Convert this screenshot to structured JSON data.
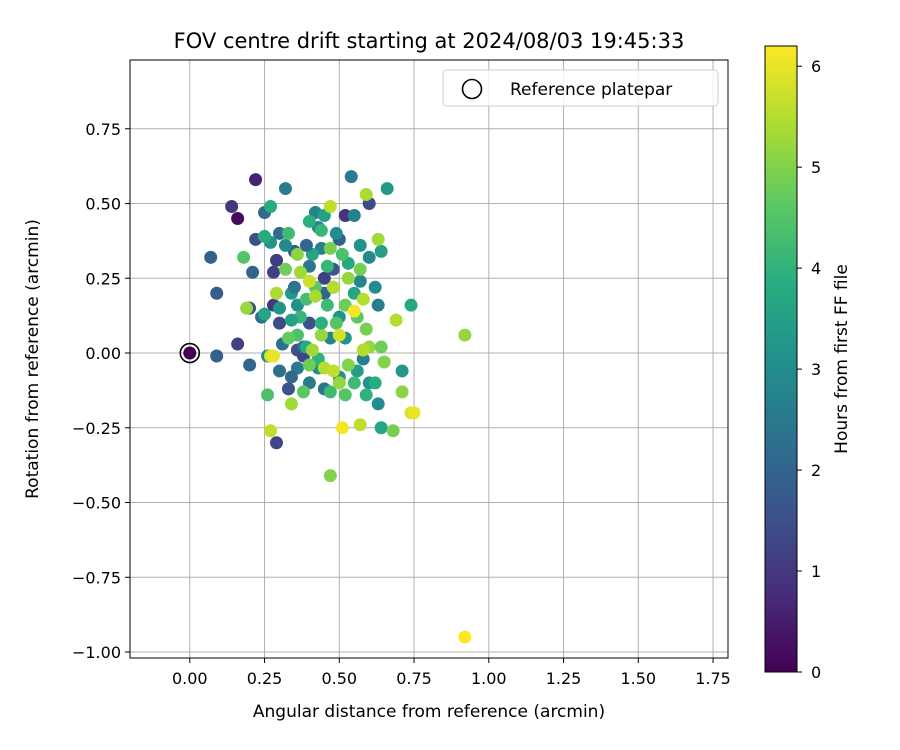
{
  "chart_data": {
    "type": "scatter",
    "title": "FOV centre drift starting at 2024/08/03 19:45:33",
    "xlabel": "Angular distance from reference (arcmin)",
    "ylabel": "Rotation from reference (arcmin)",
    "xlim": [
      -0.2,
      1.8
    ],
    "ylim": [
      -1.02,
      0.98
    ],
    "x_ticks": [
      0.0,
      0.25,
      0.5,
      0.75,
      1.0,
      1.25,
      1.5,
      1.75
    ],
    "x_tick_labels": [
      "0.00",
      "0.25",
      "0.50",
      "0.75",
      "1.00",
      "1.25",
      "1.50",
      "1.75"
    ],
    "y_ticks": [
      -1.0,
      -0.75,
      -0.5,
      -0.25,
      0.0,
      0.25,
      0.5,
      0.75
    ],
    "y_tick_labels": [
      "−1.00",
      "−0.75",
      "−0.50",
      "−0.25",
      "0.00",
      "0.25",
      "0.50",
      "0.75"
    ],
    "grid": true,
    "legend": {
      "placement": "top-right",
      "entries": [
        "Reference platepar"
      ]
    },
    "reference_point": {
      "x": 0.0,
      "y": 0.0
    },
    "colorbar": {
      "label": "Hours from first FF file",
      "range": [
        0,
        6.2
      ],
      "ticks": [
        0,
        1,
        2,
        3,
        4,
        5,
        6
      ],
      "tick_labels": [
        "0",
        "1",
        "2",
        "3",
        "4",
        "5",
        "6"
      ],
      "colormap": "viridis"
    },
    "points": [
      {
        "x": 0.0,
        "y": 0.0,
        "c": 0.0
      },
      {
        "x": 0.16,
        "y": 0.45,
        "c": 0.2
      },
      {
        "x": 0.22,
        "y": 0.58,
        "c": 0.6
      },
      {
        "x": 0.14,
        "y": 0.49,
        "c": 1.0
      },
      {
        "x": 0.16,
        "y": 0.03,
        "c": 1.2
      },
      {
        "x": 0.29,
        "y": -0.3,
        "c": 1.3
      },
      {
        "x": 0.28,
        "y": 0.16,
        "c": 1.0
      },
      {
        "x": 0.22,
        "y": 0.38,
        "c": 1.5
      },
      {
        "x": 0.3,
        "y": 0.1,
        "c": 1.4
      },
      {
        "x": 0.33,
        "y": -0.12,
        "c": 1.6
      },
      {
        "x": 0.2,
        "y": 0.15,
        "c": 1.5
      },
      {
        "x": 0.09,
        "y": 0.2,
        "c": 1.8
      },
      {
        "x": 0.07,
        "y": 0.32,
        "c": 1.9
      },
      {
        "x": 0.09,
        "y": -0.01,
        "c": 1.9
      },
      {
        "x": 0.2,
        "y": -0.04,
        "c": 2.0
      },
      {
        "x": 0.21,
        "y": 0.27,
        "c": 2.0
      },
      {
        "x": 0.25,
        "y": 0.47,
        "c": 2.1
      },
      {
        "x": 0.28,
        "y": 0.27,
        "c": 1.2
      },
      {
        "x": 0.29,
        "y": 0.31,
        "c": 1.1
      },
      {
        "x": 0.32,
        "y": 0.55,
        "c": 2.6
      },
      {
        "x": 0.3,
        "y": 0.4,
        "c": 2.2
      },
      {
        "x": 0.31,
        "y": 0.03,
        "c": 2.3
      },
      {
        "x": 0.36,
        "y": 0.01,
        "c": 1.5
      },
      {
        "x": 0.38,
        "y": -0.01,
        "c": 1.3
      },
      {
        "x": 0.35,
        "y": 0.34,
        "c": 1.8
      },
      {
        "x": 0.4,
        "y": 0.29,
        "c": 2.4
      },
      {
        "x": 0.44,
        "y": 0.35,
        "c": 2.7
      },
      {
        "x": 0.42,
        "y": 0.47,
        "c": 2.8
      },
      {
        "x": 0.45,
        "y": 0.2,
        "c": 2.0
      },
      {
        "x": 0.48,
        "y": 0.28,
        "c": 1.7
      },
      {
        "x": 0.5,
        "y": 0.38,
        "c": 1.9
      },
      {
        "x": 0.54,
        "y": 0.59,
        "c": 2.5
      },
      {
        "x": 0.6,
        "y": 0.5,
        "c": 1.4
      },
      {
        "x": 0.52,
        "y": 0.46,
        "c": 0.9
      },
      {
        "x": 0.45,
        "y": 0.25,
        "c": 1.2
      },
      {
        "x": 0.4,
        "y": 0.1,
        "c": 1.6
      },
      {
        "x": 0.38,
        "y": 0.02,
        "c": 2.2
      },
      {
        "x": 0.36,
        "y": -0.05,
        "c": 2.6
      },
      {
        "x": 0.34,
        "y": -0.08,
        "c": 2.1
      },
      {
        "x": 0.3,
        "y": -0.06,
        "c": 2.3
      },
      {
        "x": 0.26,
        "y": -0.01,
        "c": 3.0
      },
      {
        "x": 0.24,
        "y": 0.12,
        "c": 2.2
      },
      {
        "x": 0.27,
        "y": 0.37,
        "c": 3.2
      },
      {
        "x": 0.27,
        "y": 0.49,
        "c": 3.8
      },
      {
        "x": 0.32,
        "y": 0.36,
        "c": 2.9
      },
      {
        "x": 0.34,
        "y": 0.2,
        "c": 3.3
      },
      {
        "x": 0.36,
        "y": 0.16,
        "c": 3.1
      },
      {
        "x": 0.41,
        "y": 0.33,
        "c": 3.6
      },
      {
        "x": 0.43,
        "y": 0.42,
        "c": 2.9
      },
      {
        "x": 0.45,
        "y": 0.46,
        "c": 3.5
      },
      {
        "x": 0.49,
        "y": 0.4,
        "c": 3.0
      },
      {
        "x": 0.48,
        "y": 0.22,
        "c": 3.4
      },
      {
        "x": 0.5,
        "y": 0.12,
        "c": 3.2
      },
      {
        "x": 0.53,
        "y": 0.3,
        "c": 3.7
      },
      {
        "x": 0.55,
        "y": 0.46,
        "c": 2.7
      },
      {
        "x": 0.57,
        "y": 0.36,
        "c": 3.1
      },
      {
        "x": 0.57,
        "y": 0.24,
        "c": 2.8
      },
      {
        "x": 0.62,
        "y": 0.22,
        "c": 3.0
      },
      {
        "x": 0.64,
        "y": 0.34,
        "c": 3.5
      },
      {
        "x": 0.66,
        "y": 0.55,
        "c": 3.3
      },
      {
        "x": 0.6,
        "y": 0.32,
        "c": 2.9
      },
      {
        "x": 0.55,
        "y": 0.2,
        "c": 3.6
      },
      {
        "x": 0.52,
        "y": 0.05,
        "c": 3.2
      },
      {
        "x": 0.47,
        "y": 0.05,
        "c": 2.8
      },
      {
        "x": 0.43,
        "y": -0.05,
        "c": 3.0
      },
      {
        "x": 0.4,
        "y": -0.1,
        "c": 2.5
      },
      {
        "x": 0.45,
        "y": -0.12,
        "c": 2.4
      },
      {
        "x": 0.5,
        "y": -0.08,
        "c": 3.1
      },
      {
        "x": 0.56,
        "y": -0.06,
        "c": 3.4
      },
      {
        "x": 0.6,
        "y": -0.1,
        "c": 3.2
      },
      {
        "x": 0.63,
        "y": -0.17,
        "c": 3.0
      },
      {
        "x": 0.58,
        "y": -0.02,
        "c": 2.7
      },
      {
        "x": 0.63,
        "y": 0.16,
        "c": 2.6
      },
      {
        "x": 0.71,
        "y": -0.06,
        "c": 3.3
      },
      {
        "x": 0.74,
        "y": 0.16,
        "c": 3.7
      },
      {
        "x": 0.64,
        "y": -0.25,
        "c": 3.6
      },
      {
        "x": 0.62,
        "y": -0.1,
        "c": 3.8
      },
      {
        "x": 0.59,
        "y": -0.14,
        "c": 4.0
      },
      {
        "x": 0.55,
        "y": -0.1,
        "c": 4.2
      },
      {
        "x": 0.52,
        "y": -0.14,
        "c": 4.5
      },
      {
        "x": 0.47,
        "y": -0.13,
        "c": 4.2
      },
      {
        "x": 0.43,
        "y": -0.02,
        "c": 4.0
      },
      {
        "x": 0.39,
        "y": 0.02,
        "c": 3.8
      },
      {
        "x": 0.36,
        "y": 0.06,
        "c": 4.4
      },
      {
        "x": 0.33,
        "y": 0.05,
        "c": 4.7
      },
      {
        "x": 0.37,
        "y": 0.12,
        "c": 4.1
      },
      {
        "x": 0.39,
        "y": 0.18,
        "c": 4.3
      },
      {
        "x": 0.42,
        "y": 0.22,
        "c": 4.6
      },
      {
        "x": 0.46,
        "y": 0.16,
        "c": 4.2
      },
      {
        "x": 0.49,
        "y": 0.1,
        "c": 4.5
      },
      {
        "x": 0.52,
        "y": 0.16,
        "c": 4.8
      },
      {
        "x": 0.56,
        "y": 0.12,
        "c": 4.6
      },
      {
        "x": 0.59,
        "y": 0.08,
        "c": 4.9
      },
      {
        "x": 0.6,
        "y": 0.02,
        "c": 5.2
      },
      {
        "x": 0.64,
        "y": 0.02,
        "c": 4.8
      },
      {
        "x": 0.65,
        "y": -0.03,
        "c": 5.0
      },
      {
        "x": 0.68,
        "y": -0.26,
        "c": 4.9
      },
      {
        "x": 0.71,
        "y": -0.13,
        "c": 5.1
      },
      {
        "x": 0.74,
        "y": -0.2,
        "c": 5.8
      },
      {
        "x": 0.69,
        "y": 0.11,
        "c": 5.5
      },
      {
        "x": 0.57,
        "y": -0.24,
        "c": 5.6
      },
      {
        "x": 0.51,
        "y": -0.25,
        "c": 6.1
      },
      {
        "x": 0.47,
        "y": -0.41,
        "c": 5.0
      },
      {
        "x": 0.27,
        "y": -0.26,
        "c": 5.6
      },
      {
        "x": 0.26,
        "y": -0.14,
        "c": 4.4
      },
      {
        "x": 0.27,
        "y": -0.01,
        "c": 5.8
      },
      {
        "x": 0.28,
        "y": -0.01,
        "c": 6.0
      },
      {
        "x": 0.29,
        "y": 0.2,
        "c": 5.4
      },
      {
        "x": 0.32,
        "y": 0.28,
        "c": 4.8
      },
      {
        "x": 0.33,
        "y": 0.4,
        "c": 4.2
      },
      {
        "x": 0.36,
        "y": 0.33,
        "c": 5.1
      },
      {
        "x": 0.37,
        "y": 0.27,
        "c": 5.3
      },
      {
        "x": 0.4,
        "y": 0.24,
        "c": 5.7
      },
      {
        "x": 0.42,
        "y": 0.19,
        "c": 5.4
      },
      {
        "x": 0.44,
        "y": 0.06,
        "c": 5.2
      },
      {
        "x": 0.41,
        "y": 0.01,
        "c": 5.3
      },
      {
        "x": 0.45,
        "y": -0.05,
        "c": 5.5
      },
      {
        "x": 0.48,
        "y": -0.06,
        "c": 5.6
      },
      {
        "x": 0.5,
        "y": -0.1,
        "c": 5.2
      },
      {
        "x": 0.53,
        "y": -0.04,
        "c": 5.0
      },
      {
        "x": 0.5,
        "y": 0.06,
        "c": 5.8
      },
      {
        "x": 0.55,
        "y": 0.14,
        "c": 6.1
      },
      {
        "x": 0.58,
        "y": 0.18,
        "c": 5.5
      },
      {
        "x": 0.57,
        "y": 0.28,
        "c": 4.9
      },
      {
        "x": 0.53,
        "y": 0.25,
        "c": 5.2
      },
      {
        "x": 0.47,
        "y": 0.35,
        "c": 4.9
      },
      {
        "x": 0.48,
        "y": 0.22,
        "c": 5.5
      },
      {
        "x": 0.47,
        "y": 0.49,
        "c": 5.6
      },
      {
        "x": 0.59,
        "y": 0.53,
        "c": 5.4
      },
      {
        "x": 0.63,
        "y": 0.38,
        "c": 5.3
      },
      {
        "x": 0.58,
        "y": 0.01,
        "c": 5.5
      },
      {
        "x": 0.92,
        "y": 0.06,
        "c": 5.2
      },
      {
        "x": 0.92,
        "y": -0.95,
        "c": 6.2
      },
      {
        "x": 0.75,
        "y": -0.2,
        "c": 6.0
      },
      {
        "x": 0.34,
        "y": -0.17,
        "c": 5.3
      },
      {
        "x": 0.38,
        "y": -0.13,
        "c": 4.6
      },
      {
        "x": 0.4,
        "y": -0.04,
        "c": 4.8
      },
      {
        "x": 0.3,
        "y": 0.15,
        "c": 3.2
      },
      {
        "x": 0.34,
        "y": 0.11,
        "c": 3.5
      },
      {
        "x": 0.44,
        "y": 0.1,
        "c": 3.9
      },
      {
        "x": 0.46,
        "y": 0.29,
        "c": 4.1
      },
      {
        "x": 0.51,
        "y": 0.33,
        "c": 4.4
      },
      {
        "x": 0.44,
        "y": 0.41,
        "c": 4.1
      },
      {
        "x": 0.4,
        "y": 0.44,
        "c": 3.9
      },
      {
        "x": 0.18,
        "y": 0.32,
        "c": 4.5
      },
      {
        "x": 0.19,
        "y": 0.15,
        "c": 5.2
      },
      {
        "x": 0.25,
        "y": 0.13,
        "c": 3.6
      },
      {
        "x": 0.25,
        "y": 0.39,
        "c": 3.8
      },
      {
        "x": 0.35,
        "y": 0.22,
        "c": 2.4
      },
      {
        "x": 0.39,
        "y": 0.36,
        "c": 2.1
      }
    ]
  }
}
